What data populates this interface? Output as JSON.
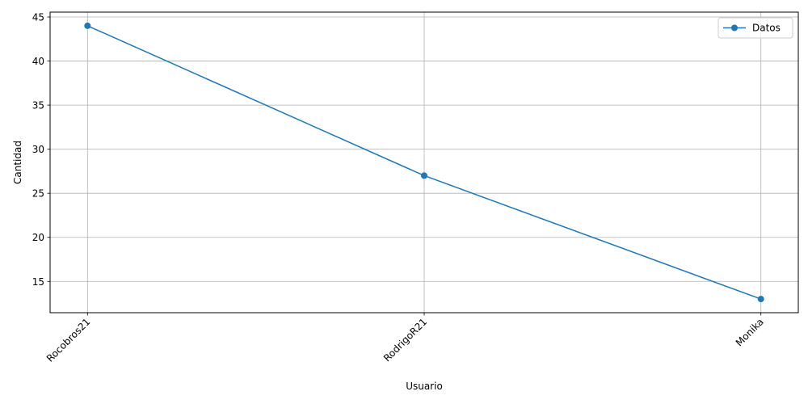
{
  "chart_data": {
    "type": "line",
    "categories": [
      "Rocobros21",
      "RodrigoR21",
      "Monika"
    ],
    "series": [
      {
        "name": "Datos",
        "values": [
          44,
          27,
          13
        ],
        "color": "#1f77b4"
      }
    ],
    "xlabel": "Usuario",
    "ylabel": "Cantidad",
    "ylim": [
      11.45,
      45.55
    ],
    "yticks": [
      15,
      20,
      25,
      30,
      35,
      40,
      45
    ],
    "grid": true,
    "legend_position": "top-right",
    "marker": "circle"
  }
}
